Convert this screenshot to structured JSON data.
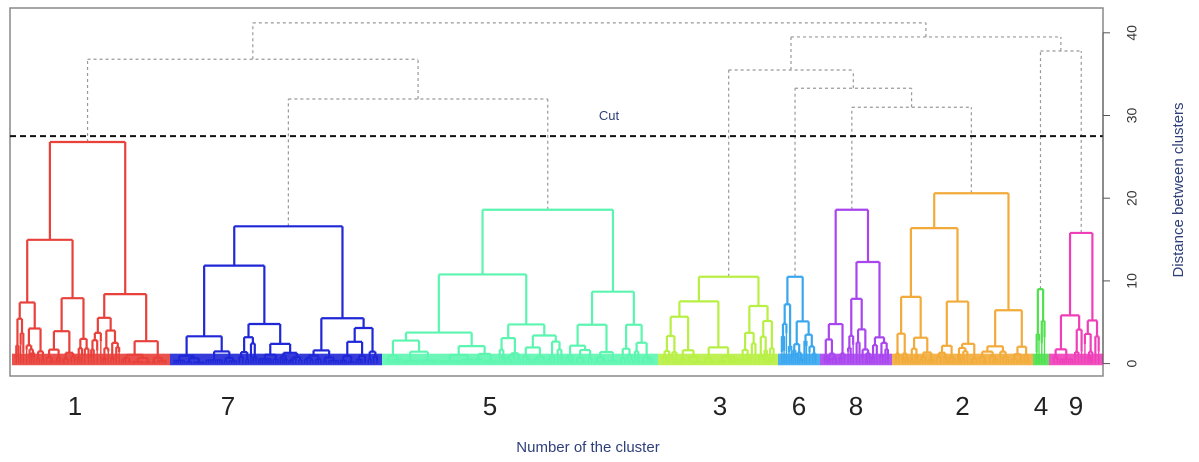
{
  "chart_data": {
    "type": "dendrogram",
    "xlabel": "Number of the cluster",
    "ylabel": "Distance between clusters",
    "ylim": [
      -1.5,
      43
    ],
    "yticks": [
      0,
      10,
      20,
      30,
      40
    ],
    "y_axis_side": "right",
    "cut": {
      "label": "Cut",
      "height": 27.5,
      "style": "dashed"
    },
    "clusters": [
      {
        "label": "1",
        "color": "#e8403a",
        "height": 26.8
      },
      {
        "label": "7",
        "color": "#1f27d6",
        "height": 16.6
      },
      {
        "label": "5",
        "color": "#5cf5b0",
        "height": 18.6
      },
      {
        "label": "3",
        "color": "#b8ef45",
        "height": 10.5
      },
      {
        "label": "6",
        "color": "#39a6ee",
        "height": 10.5
      },
      {
        "label": "8",
        "color": "#a845ee",
        "height": 18.6
      },
      {
        "label": "2",
        "color": "#f2ab3a",
        "height": 20.6
      },
      {
        "label": "4",
        "color": "#4ee04e",
        "height": 9.0
      },
      {
        "label": "9",
        "color": "#ee3fb8",
        "height": 15.8
      }
    ],
    "upper_merges": [
      {
        "members": [
          "5",
          "7"
        ],
        "height": 32.0
      },
      {
        "members": [
          "1",
          "7",
          "5"
        ],
        "height": 36.8
      },
      {
        "members": [
          "8",
          "2"
        ],
        "height": 31.0
      },
      {
        "members": [
          "6",
          "8",
          "2"
        ],
        "height": 33.3
      },
      {
        "members": [
          "3",
          "6",
          "8",
          "2"
        ],
        "height": 35.5
      },
      {
        "members": [
          "4",
          "9"
        ],
        "height": 37.8
      },
      {
        "members": [
          "3",
          "6",
          "8",
          "2",
          "4",
          "9"
        ],
        "height": 39.5
      },
      {
        "members": [
          "all"
        ],
        "height": 41.2
      }
    ],
    "upper_link_color": "#999999",
    "upper_link_style": "dotted"
  }
}
